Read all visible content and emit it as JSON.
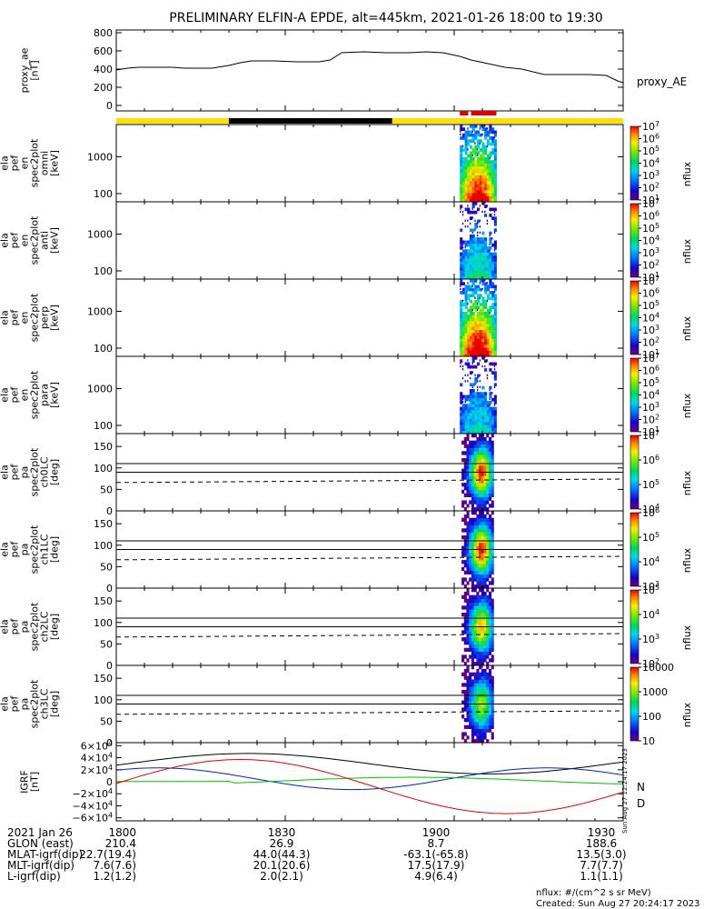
{
  "title": "PRELIMINARY ELFIN-A EPDE, alt=445km, 2021-01-26 18:00 to 19:30",
  "time_axis": {
    "range_minutes": [
      0,
      90
    ],
    "ticks": [
      {
        "t": 0,
        "label": "1800"
      },
      {
        "t": 30,
        "label": "1830"
      },
      {
        "t": 60,
        "label": "1900"
      },
      {
        "t": 90,
        "label": "1930"
      }
    ]
  },
  "colors": {
    "sun_bar": "#FFE000",
    "shadow_bar": "#000000",
    "science_bar": "#E00000",
    "igrf_black": "#000000",
    "igrf_blue": "#0020D0",
    "igrf_green": "#00C000",
    "igrf_red": "#E00000"
  },
  "chart_data": [
    {
      "id": "proxy_ae",
      "type": "line",
      "ylabel_lines": [
        "proxy_ae",
        "[nT]"
      ],
      "ylim": [
        -60,
        830
      ],
      "yticks": [
        {
          "v": 0,
          "label": "0"
        },
        {
          "v": 200,
          "label": "200"
        },
        {
          "v": 400,
          "label": "400"
        },
        {
          "v": 600,
          "label": "600"
        },
        {
          "v": 800,
          "label": "800"
        }
      ],
      "legend": "proxy_AE",
      "series": [
        {
          "name": "proxy_AE",
          "x": [
            0,
            2,
            4,
            10,
            12,
            17,
            20,
            22,
            24,
            28,
            32,
            36,
            38,
            40,
            44,
            48,
            52,
            55,
            58,
            61,
            63,
            66,
            69,
            72,
            76,
            80,
            84,
            87,
            89,
            90
          ],
          "y": [
            390,
            410,
            420,
            420,
            410,
            410,
            440,
            470,
            490,
            490,
            480,
            480,
            500,
            580,
            590,
            580,
            580,
            590,
            580,
            540,
            500,
            460,
            420,
            400,
            340,
            340,
            340,
            330,
            270,
            250
          ]
        }
      ]
    },
    {
      "id": "spec_omni",
      "type": "heatmap",
      "ylabel_lines": [
        "ela",
        "pef",
        "en",
        "spec2plot",
        "omni",
        "[keV]"
      ],
      "scale": "log",
      "ylim": [
        60,
        7500
      ],
      "yticks": [
        {
          "v": 100,
          "label": "100"
        },
        {
          "v": 1000,
          "label": "1000"
        }
      ],
      "colorbar": {
        "label": "nflux",
        "log": true,
        "min_exp": 1,
        "max_exp": 7,
        "labels": [
          "10^1",
          "10^2",
          "10^3",
          "10^4",
          "10^5",
          "10^6",
          "10^7"
        ]
      },
      "intensity": 1.0
    },
    {
      "id": "spec_anti",
      "type": "heatmap",
      "ylabel_lines": [
        "ela",
        "pef",
        "en",
        "spec2plot",
        "anti",
        "[keV]"
      ],
      "scale": "log",
      "ylim": [
        60,
        7500
      ],
      "yticks": [
        {
          "v": 100,
          "label": "100"
        },
        {
          "v": 1000,
          "label": "1000"
        }
      ],
      "colorbar": {
        "label": "nflux",
        "log": true,
        "min_exp": 1,
        "max_exp": 7,
        "labels": [
          "10^1",
          "10^2",
          "10^3",
          "10^4",
          "10^5",
          "10^6",
          "10^7"
        ]
      },
      "intensity": 0.45
    },
    {
      "id": "spec_perp",
      "type": "heatmap",
      "ylabel_lines": [
        "ela",
        "pef",
        "en",
        "spec2plot",
        "perp",
        "[keV]"
      ],
      "scale": "log",
      "ylim": [
        60,
        7500
      ],
      "yticks": [
        {
          "v": 100,
          "label": "100"
        },
        {
          "v": 1000,
          "label": "1000"
        }
      ],
      "colorbar": {
        "label": "nflux",
        "log": true,
        "min_exp": 1,
        "max_exp": 7,
        "labels": [
          "10^1",
          "10^2",
          "10^3",
          "10^4",
          "10^5",
          "10^6",
          "10^7"
        ]
      },
      "intensity": 1.05
    },
    {
      "id": "spec_para",
      "type": "heatmap",
      "ylabel_lines": [
        "ela",
        "pef",
        "en",
        "spec2plot",
        "para",
        "[keV]"
      ],
      "scale": "log",
      "ylim": [
        60,
        7500
      ],
      "yticks": [
        {
          "v": 100,
          "label": "100"
        },
        {
          "v": 1000,
          "label": "1000"
        }
      ],
      "colorbar": {
        "label": "nflux",
        "log": true,
        "min_exp": 1,
        "max_exp": 7,
        "labels": [
          "10^1",
          "10^2",
          "10^3",
          "10^4",
          "10^5",
          "10^6",
          "10^7"
        ]
      },
      "intensity": 0.4
    },
    {
      "id": "pa_ch0",
      "type": "heatmap",
      "ylabel_lines": [
        "ela",
        "pef",
        "pa",
        "spec2plot",
        "ch0LC",
        "[deg]"
      ],
      "ylim": [
        0,
        180
      ],
      "yticks": [
        {
          "v": 0,
          "label": "0"
        },
        {
          "v": 50,
          "label": "50"
        },
        {
          "v": 100,
          "label": "100"
        },
        {
          "v": 150,
          "label": "150"
        }
      ],
      "hlines": [
        90,
        110
      ],
      "colorbar": {
        "label": "nflux",
        "log": true,
        "min_exp": 3.5,
        "max_exp": 7,
        "labels": [
          "10^4",
          "10^5",
          "10^6",
          "10^7"
        ]
      },
      "intensity": 1.0
    },
    {
      "id": "pa_ch1",
      "type": "heatmap",
      "ylabel_lines": [
        "ela",
        "pef",
        "pa",
        "spec2plot",
        "ch1LC",
        "[deg]"
      ],
      "ylim": [
        0,
        180
      ],
      "yticks": [
        {
          "v": 0,
          "label": "0"
        },
        {
          "v": 50,
          "label": "50"
        },
        {
          "v": 100,
          "label": "100"
        },
        {
          "v": 150,
          "label": "150"
        }
      ],
      "hlines": [
        90,
        110
      ],
      "colorbar": {
        "label": "nflux",
        "log": true,
        "min_exp": 3,
        "max_exp": 6,
        "labels": [
          "10^3",
          "10^4",
          "10^5",
          "10^6"
        ]
      },
      "intensity": 1.0
    },
    {
      "id": "pa_ch2",
      "type": "heatmap",
      "ylabel_lines": [
        "ela",
        "pef",
        "pa",
        "spec2plot",
        "ch2LC",
        "[deg]"
      ],
      "ylim": [
        0,
        180
      ],
      "yticks": [
        {
          "v": 0,
          "label": "0"
        },
        {
          "v": 50,
          "label": "50"
        },
        {
          "v": 100,
          "label": "100"
        },
        {
          "v": 150,
          "label": "150"
        }
      ],
      "hlines": [
        90,
        110
      ],
      "colorbar": {
        "label": "nflux",
        "log": true,
        "min_exp": 2,
        "max_exp": 5,
        "labels": [
          "10^2",
          "10^3",
          "10^4",
          "10^5"
        ]
      },
      "intensity": 0.85
    },
    {
      "id": "pa_ch3",
      "type": "heatmap",
      "ylabel_lines": [
        "ela",
        "pef",
        "pa",
        "spec2plot",
        "ch3LC",
        "[deg]"
      ],
      "ylim": [
        0,
        180
      ],
      "yticks": [
        {
          "v": 0,
          "label": "0"
        },
        {
          "v": 50,
          "label": "50"
        },
        {
          "v": 100,
          "label": "100"
        },
        {
          "v": 150,
          "label": "150"
        }
      ],
      "hlines": [
        90,
        110
      ],
      "colorbar": {
        "label": "nflux",
        "log": true,
        "min_exp": 1,
        "max_exp": 4,
        "labels": [
          "10",
          "100",
          "1000",
          "10000"
        ]
      },
      "intensity": 0.7
    },
    {
      "id": "igrf",
      "type": "line",
      "ylabel_lines": [
        "IGRF",
        "[nT]"
      ],
      "ylim": [
        -65000,
        65000
      ],
      "yticks": [
        {
          "v": -60000,
          "label": "−6×10^4"
        },
        {
          "v": -40000,
          "label": "−4×10^4"
        },
        {
          "v": -20000,
          "label": "−2×10^4"
        },
        {
          "v": 0,
          "label": "0"
        },
        {
          "v": 20000,
          "label": "2×10^4"
        },
        {
          "v": 40000,
          "label": "4×10^4"
        },
        {
          "v": 60000,
          "label": "6×10^4"
        }
      ],
      "legend_labels": [
        "N",
        "D"
      ]
    }
  ],
  "footer_table": {
    "rows": [
      {
        "label": "2021 Jan 26",
        "values": [
          "1800",
          "1830",
          "1900",
          "1930"
        ]
      },
      {
        "label": "GLON (east)",
        "values": [
          "210.4",
          "26.9",
          "8.7",
          "188.6"
        ]
      },
      {
        "label": "MLAT-igrf(dip)",
        "values": [
          "22.7(19.4)",
          "44.0(44.3)",
          "-63.1(-65.8)",
          "13.5(3.0)"
        ]
      },
      {
        "label": "MLT-igrf(dip)",
        "values": [
          "7.6(7.6)",
          "20.1(20.6)",
          "17.5(17.9)",
          "7.7(7.7)"
        ]
      },
      {
        "label": "L-igrf(dip)",
        "values": [
          "1.2(1.2)",
          "2.0(2.1)",
          "4.9(6.4)",
          "1.1(1.1)"
        ]
      }
    ]
  },
  "footnote_units": "nflux: #/(cm^2 s sr MeV)",
  "created": "Created: Sun Aug 27 20:24:17 2023",
  "side_stamp": "Sun Aug 27 12:24:17 2023"
}
